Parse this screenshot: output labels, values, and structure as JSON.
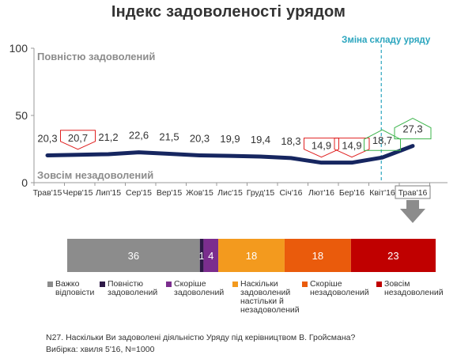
{
  "title": "Індекс задоволеності урядом",
  "colors": {
    "line": "#162660",
    "axis": "#999999",
    "vline": "#2aa5be",
    "label_box_down": "#e02020",
    "label_box_up": "#3cb44b",
    "arrow": "#8c8c8c"
  },
  "chart_data": [
    {
      "type": "line",
      "title": "Індекс задоволеності урядом",
      "categories": [
        "Трав'15",
        "Черв'15",
        "Лип'15",
        "Сер'15",
        "Вер'15",
        "Жов'15",
        "Лис'15",
        "Груд'15",
        "Січ'16",
        "Лют'16",
        "Бер'16",
        "Квіт'16",
        "Трав'16"
      ],
      "values": [
        20.3,
        20.7,
        21.2,
        22.6,
        21.5,
        20.3,
        19.9,
        19.4,
        18.3,
        14.9,
        14.9,
        18.7,
        27.3
      ],
      "value_labels": [
        "20,3",
        "20,7",
        "21,2",
        "22,6",
        "21,5",
        "20,3",
        "19,9",
        "19,4",
        "18,3",
        "14,9",
        "14,9",
        "18,7",
        "27,3"
      ],
      "ylim": [
        0,
        100
      ],
      "yticks": [
        0,
        50,
        100
      ],
      "grid": false,
      "annotations": {
        "top_band": "Повністю задоволений",
        "bottom_band": "Зовсім незадоволений",
        "vline_label": "Зміна складу уряду",
        "vline_after_category": "Бер'16",
        "highlighted_category": "Трав'16",
        "down_markers": [
          "Черв'15",
          "Лют'16",
          "Бер'16"
        ],
        "up_markers": [
          "Квіт'16",
          "Трав'16"
        ]
      }
    },
    {
      "type": "bar",
      "orientation": "stacked-horizontal",
      "categories": [
        "Важко відповісти",
        "Повністю задоволений",
        "Скоріше задоволений",
        "Наскільки задоволений настільки й незадоволений",
        "Скоріше незадоволений",
        "Зовсім незадоволений"
      ],
      "values": [
        36,
        1,
        4,
        18,
        18,
        23
      ],
      "value_labels": [
        "36",
        "1",
        "4",
        "18",
        "18",
        "23"
      ],
      "colors": [
        "#8c8c8c",
        "#2e1a47",
        "#7b2d8e",
        "#f39a1e",
        "#ea5b0c",
        "#c00000"
      ]
    }
  ],
  "legend": [
    {
      "label": "Важко відповісти",
      "color": "#8c8c8c"
    },
    {
      "label": "Повністю задоволений",
      "color": "#2e1a47"
    },
    {
      "label": "Скоріше задоволений",
      "color": "#7b2d8e"
    },
    {
      "label": "Наскільки задоволений настільки й незадоволений",
      "color": "#f39a1e"
    },
    {
      "label": "Скоріше незадоволений",
      "color": "#ea5b0c"
    },
    {
      "label": "Зовсім незадоволений",
      "color": "#c00000"
    }
  ],
  "footnote": {
    "question": "N27. Наскільки Ви задоволені діяльністю Уряду під керівництвом В. Гройсмана?",
    "sample": "Вибірка: хвиля 5'16, N=1000"
  }
}
